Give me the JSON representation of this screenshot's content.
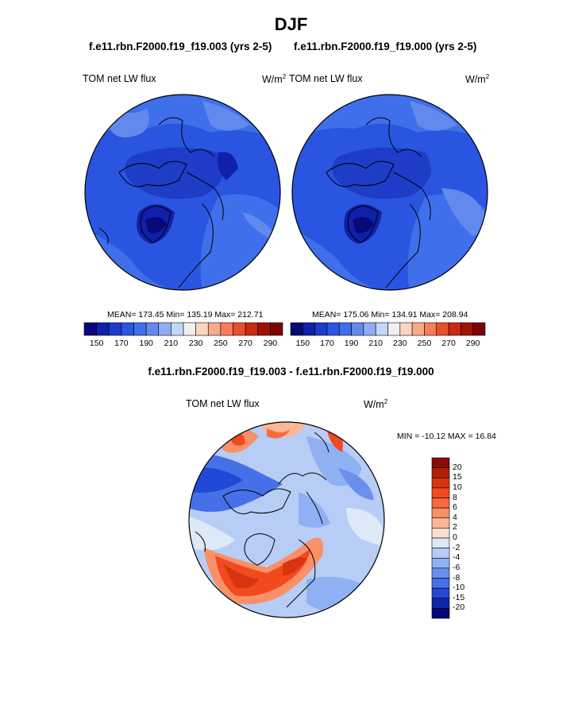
{
  "figure": {
    "title": "DJF",
    "diff_title": "f.e11.rbn.F2000.f19_f19.003 - f.e11.rbn.F2000.f19_f19.000"
  },
  "chart_data": [
    {
      "type": "heatmap",
      "subtitle": "f.e11.rbn.F2000.f19_f19.003 (yrs 2-5)",
      "field_label": "TOM net LW flux",
      "units_base": "W/m",
      "units_exp": "2",
      "stats": {
        "mean": 173.45,
        "min": 135.19,
        "max": 212.71
      },
      "stats_text": "MEAN= 173.45  Min= 135.19  Max= 212.71",
      "colorbar": {
        "levels": [
          150,
          160,
          170,
          180,
          190,
          200,
          210,
          220,
          230,
          240,
          250,
          260,
          270,
          280,
          290
        ],
        "tick_labels": [
          "150",
          "170",
          "190",
          "210",
          "230",
          "250",
          "270",
          "290"
        ],
        "colors": [
          "#08087a",
          "#1020a8",
          "#1e3cc8",
          "#2a55e0",
          "#3f6fea",
          "#6289ee",
          "#8fadf4",
          "#c2d8fa",
          "#f0f0f0",
          "#fcd4bf",
          "#f9a98a",
          "#f77c5a",
          "#e8502c",
          "#c82a12",
          "#a01206",
          "#7a0404"
        ]
      }
    },
    {
      "type": "heatmap",
      "subtitle": "f.e11.rbn.F2000.f19_f19.000 (yrs 2-5)",
      "field_label": "TOM net LW flux",
      "units_base": "W/m",
      "units_exp": "2",
      "stats": {
        "mean": 175.06,
        "min": 134.91,
        "max": 208.94
      },
      "stats_text": "MEAN= 175.06  Min= 134.91  Max= 208.94",
      "colorbar": {
        "levels": [
          150,
          160,
          170,
          180,
          190,
          200,
          210,
          220,
          230,
          240,
          250,
          260,
          270,
          280,
          290
        ],
        "tick_labels": [
          "150",
          "170",
          "190",
          "210",
          "230",
          "250",
          "270",
          "290"
        ],
        "colors": [
          "#08087a",
          "#1020a8",
          "#1e3cc8",
          "#2a55e0",
          "#3f6fea",
          "#6289ee",
          "#8fadf4",
          "#c2d8fa",
          "#f0f0f0",
          "#fcd4bf",
          "#f9a98a",
          "#f77c5a",
          "#e8502c",
          "#c82a12",
          "#a01206",
          "#7a0404"
        ]
      }
    },
    {
      "type": "heatmap",
      "field_label": "TOM net LW flux",
      "units_base": "W/m",
      "units_exp": "2",
      "stats": {
        "min": -10.12,
        "max": 16.84
      },
      "stats_text": "MIN = -10.12 MAX =  16.84",
      "colorbar": {
        "orientation": "vertical",
        "levels": [
          -20,
          -15,
          -10,
          -8,
          -6,
          -4,
          -2,
          0,
          2,
          4,
          6,
          8,
          10,
          15,
          20
        ],
        "tick_labels": [
          "20",
          "15",
          "10",
          "8",
          "6",
          "4",
          "2",
          "0",
          "-2",
          "-4",
          "-6",
          "-8",
          "-10",
          "-15",
          "-20"
        ],
        "colors_top_to_bottom": [
          "#8a0a04",
          "#b41e08",
          "#d83410",
          "#f04a1e",
          "#f86a3c",
          "#f99068",
          "#fbb898",
          "#fde0cc",
          "#dde8f8",
          "#b7cdf6",
          "#8fb0f2",
          "#6a90ee",
          "#4570e8",
          "#2248d6",
          "#0f26a8",
          "#06067a"
        ]
      }
    }
  ]
}
